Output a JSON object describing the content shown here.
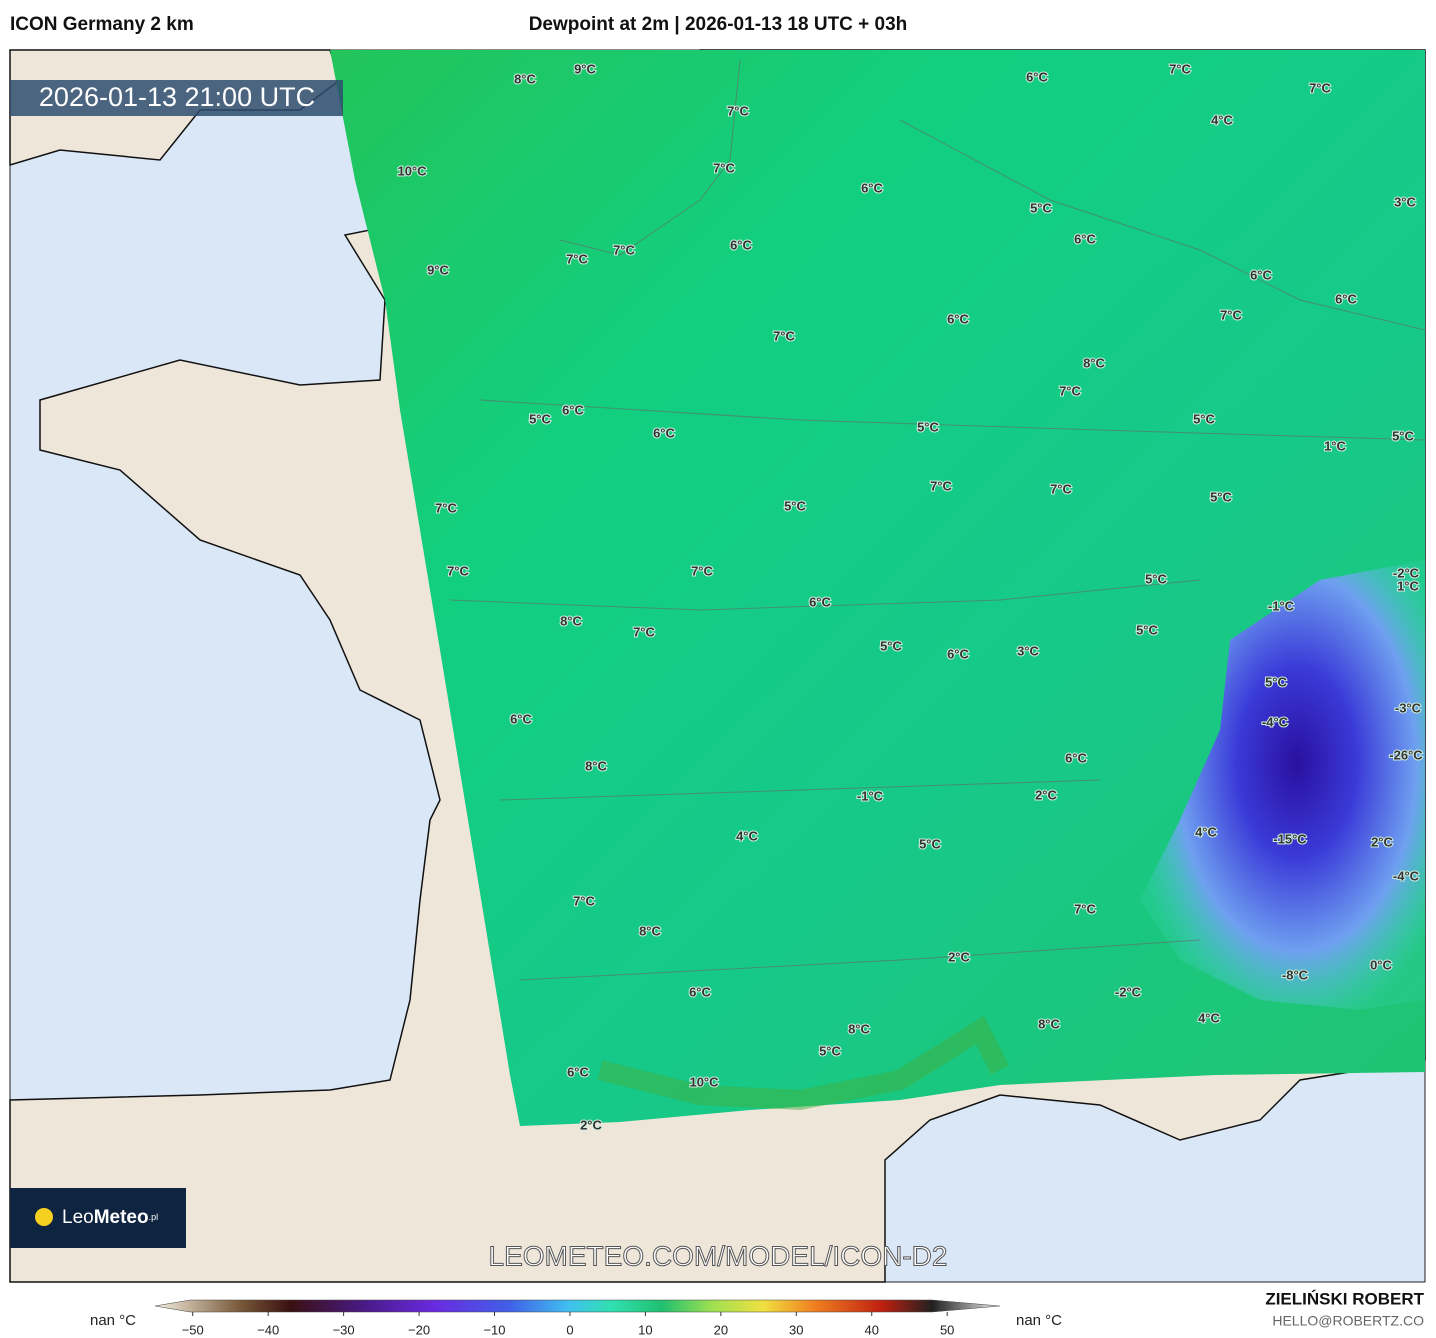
{
  "header": {
    "model": "ICON Germany 2 km",
    "title": "Dewpoint at 2m | 2026-01-13 18 UTC + 03h"
  },
  "timestamp": "2026-01-13 21:00 UTC",
  "map": {
    "labels": [
      "8°C",
      "9°C",
      "6°C",
      "7°C",
      "7°C",
      "4°C",
      "7°C",
      "10°C",
      "7°C",
      "6°C",
      "5°C",
      "6°C",
      "3°C",
      "6°C",
      "7°C",
      "7°C",
      "9°C",
      "6°C",
      "6°C",
      "6°C",
      "7°C",
      "7°C",
      "8°C",
      "7°C",
      "5°C",
      "6°C",
      "5°C",
      "6°C",
      "5°C",
      "1°C",
      "5°C",
      "7°C",
      "7°C",
      "5°C",
      "7°C",
      "5°C",
      "7°C",
      "7°C",
      "5°C",
      "-2°C",
      "1°C",
      "6°C",
      "-1°C",
      "8°C",
      "7°C",
      "5°C",
      "5°C",
      "6°C",
      "3°C",
      "5°C",
      "6°C",
      "-4°C",
      "-3°C",
      "-26°C",
      "6°C",
      "8°C",
      "-1°C",
      "2°C",
      "4°C",
      "4°C",
      "-15°C",
      "5°C",
      "2°C",
      "-4°C",
      "7°C",
      "7°C",
      "8°C",
      "2°C",
      "0°C",
      "-8°C",
      "6°C",
      "-2°C",
      "4°C",
      "8°C",
      "8°C",
      "5°C",
      "6°C",
      "10°C",
      "2°C"
    ]
  },
  "logo": {
    "part1": "Leo",
    "part2": "Meteo",
    "suffix": ".pl"
  },
  "watermark": "LEOMETEO.COM/MODEL/ICON-D2",
  "colorbar": {
    "lim": [
      -55,
      57
    ],
    "ticks": [
      {
        "value": -50,
        "label": "−50"
      },
      {
        "value": -40,
        "label": "−40"
      },
      {
        "value": -30,
        "label": "−30"
      },
      {
        "value": -20,
        "label": "−20"
      },
      {
        "value": -10,
        "label": "−10"
      },
      0,
      10,
      20,
      30,
      40,
      50
    ],
    "nan_left": "nan °C",
    "nan_right": "nan °C"
  },
  "credit": {
    "name": "ZIELIŃSKI ROBERT",
    "email": "HELLO@ROBERTZ.CO"
  }
}
